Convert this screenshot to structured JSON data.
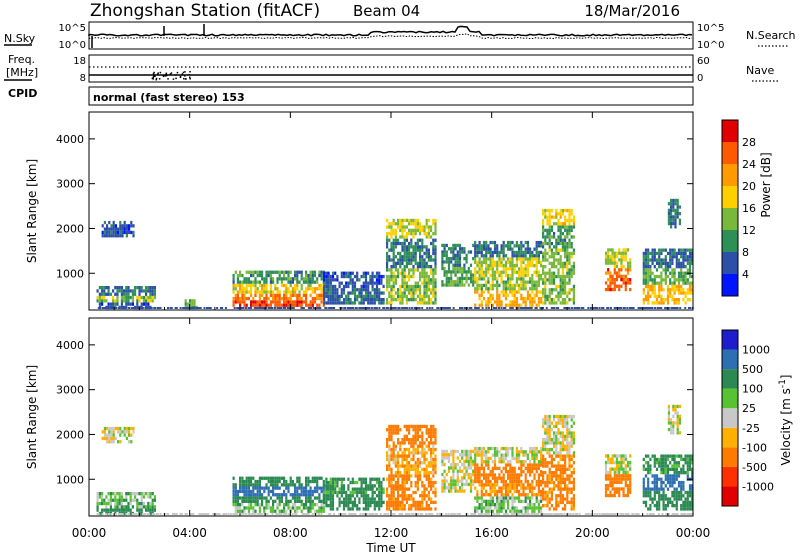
{
  "header": {
    "station": "Zhongshan Station (fitACF)",
    "beam": "Beam 04",
    "date": "18/Mar/2016"
  },
  "top_panels": {
    "nsky_label": "N.Sky",
    "nsearch_label": "N.Search",
    "freq_label_1": "Freq.",
    "freq_label_2": "[MHz]",
    "nave_label": "Nave",
    "cpid_label": "CPID",
    "cpid_value": "normal (fast stereo) 153",
    "noise_ticks_left": [
      "10^5",
      "10^0"
    ],
    "noise_ticks_right": [
      "10^5",
      "10^0"
    ],
    "freq_ticks_left": [
      "18",
      "8"
    ],
    "nave_ticks_right": [
      "60",
      "0"
    ]
  },
  "axes": {
    "ylabel": "Slant Range [km]",
    "yticks": [
      "4000",
      "3000",
      "2000",
      "1000"
    ],
    "xticks": [
      "00:00",
      "04:00",
      "08:00",
      "12:00",
      "16:00",
      "20:00",
      "00:00"
    ],
    "xlabel": "Time UT"
  },
  "colorbars": {
    "power": {
      "label": "Power [dB]",
      "ticks": [
        "28",
        "24",
        "20",
        "16",
        "12",
        "8",
        "4"
      ],
      "colors": [
        "#e00000",
        "#ff5a00",
        "#ff9a00",
        "#ffd000",
        "#79b83a",
        "#2e8f57",
        "#2c4fa8",
        "#0014ff"
      ]
    },
    "velocity": {
      "label": "Velocity [m s",
      "label_superscript": "-1",
      "label_close": "]",
      "ticks": [
        "1000",
        "500",
        "100",
        "25",
        "-25",
        "-100",
        "-500",
        "-1000"
      ],
      "colors": [
        "#1d1dcc",
        "#2d6fb2",
        "#2a8a52",
        "#58c232",
        "#c8c8c8",
        "#ffb000",
        "#ff7a00",
        "#ff3000",
        "#e00000"
      ]
    }
  },
  "chart_data": [
    {
      "type": "heatmap",
      "name": "power",
      "x_range_hours": [
        0,
        24
      ],
      "y_range_km": [
        180,
        4600
      ],
      "regions": [
        {
          "t0": 0.3,
          "t1": 2.6,
          "r0": 200,
          "r1": 650,
          "bands": [
            {
              "r": 250,
              "v": 6
            },
            {
              "r": 400,
              "v": 14
            },
            {
              "r": 550,
              "v": 8
            }
          ]
        },
        {
          "t0": 0.5,
          "t1": 1.8,
          "r0": 1800,
          "r1": 2100,
          "bands": [
            {
              "r": 1950,
              "v": 6
            }
          ]
        },
        {
          "t0": 3.8,
          "t1": 4.3,
          "r0": 200,
          "r1": 400,
          "bands": [
            {
              "r": 300,
              "v": 12
            }
          ]
        },
        {
          "t0": 5.7,
          "t1": 9.3,
          "r0": 250,
          "r1": 1000,
          "bands": [
            {
              "r": 330,
              "v": 27
            },
            {
              "r": 450,
              "v": 24
            },
            {
              "r": 600,
              "v": 18
            },
            {
              "r": 800,
              "v": 10
            }
          ]
        },
        {
          "t0": 9.3,
          "t1": 11.7,
          "r0": 300,
          "r1": 1000,
          "bands": [
            {
              "r": 500,
              "v": 7
            },
            {
              "r": 800,
              "v": 6
            }
          ]
        },
        {
          "t0": 11.8,
          "t1": 13.8,
          "r0": 300,
          "r1": 2200,
          "bands": [
            {
              "r": 800,
              "v": 14
            },
            {
              "r": 1400,
              "v": 8
            },
            {
              "r": 2000,
              "v": 16
            }
          ]
        },
        {
          "t0": 14.0,
          "t1": 15.3,
          "r0": 700,
          "r1": 1600,
          "bands": [
            {
              "r": 900,
              "v": 12
            },
            {
              "r": 1300,
              "v": 8
            }
          ]
        },
        {
          "t0": 15.3,
          "t1": 18.0,
          "r0": 250,
          "r1": 1700,
          "bands": [
            {
              "r": 400,
              "v": 21
            },
            {
              "r": 700,
              "v": 14
            },
            {
              "r": 1100,
              "v": 16
            },
            {
              "r": 1500,
              "v": 8
            }
          ]
        },
        {
          "t0": 18.0,
          "t1": 19.3,
          "r0": 300,
          "r1": 2400,
          "bands": [
            {
              "r": 1200,
              "v": 14
            },
            {
              "r": 1800,
              "v": 10
            },
            {
              "r": 2200,
              "v": 18
            }
          ]
        },
        {
          "t0": 20.5,
          "t1": 21.5,
          "r0": 600,
          "r1": 1500,
          "bands": [
            {
              "r": 900,
              "v": 26
            },
            {
              "r": 1200,
              "v": 16
            }
          ]
        },
        {
          "t0": 22.0,
          "t1": 24.0,
          "r0": 300,
          "r1": 1500,
          "bands": [
            {
              "r": 500,
              "v": 20
            },
            {
              "r": 900,
              "v": 12
            },
            {
              "r": 1300,
              "v": 7
            }
          ]
        },
        {
          "t0": 23.0,
          "t1": 23.5,
          "r0": 2000,
          "r1": 2600,
          "bands": [
            {
              "r": 2300,
              "v": 8
            }
          ]
        }
      ]
    },
    {
      "type": "heatmap",
      "name": "velocity",
      "x_range_hours": [
        0,
        24
      ],
      "y_range_km": [
        180,
        4600
      ],
      "regions": [
        {
          "t0": 0.3,
          "t1": 2.6,
          "r0": 200,
          "r1": 650,
          "bands": [
            {
              "r": 250,
              "v": 200
            },
            {
              "r": 400,
              "v": 80
            },
            {
              "r": 550,
              "v": 60
            }
          ]
        },
        {
          "t0": 0.5,
          "t1": 1.8,
          "r0": 1800,
          "r1": 2100,
          "bands": [
            {
              "r": 1950,
              "v": 0
            }
          ]
        },
        {
          "t0": 5.7,
          "t1": 9.3,
          "r0": 250,
          "r1": 1000,
          "bands": [
            {
              "r": 330,
              "v": 60
            },
            {
              "r": 500,
              "v": 200
            },
            {
              "r": 700,
              "v": 900
            },
            {
              "r": 900,
              "v": 300
            }
          ]
        },
        {
          "t0": 9.3,
          "t1": 11.7,
          "r0": 300,
          "r1": 1000,
          "bands": [
            {
              "r": 500,
              "v": 250
            },
            {
              "r": 800,
              "v": 150
            }
          ]
        },
        {
          "t0": 11.8,
          "t1": 13.8,
          "r0": 300,
          "r1": 2200,
          "bands": [
            {
              "r": 800,
              "v": -150
            },
            {
              "r": 1400,
              "v": -80
            },
            {
              "r": 2000,
              "v": -200
            }
          ]
        },
        {
          "t0": 14.0,
          "t1": 15.3,
          "r0": 700,
          "r1": 1600,
          "bands": [
            {
              "r": 900,
              "v": 0
            },
            {
              "r": 1300,
              "v": 0
            }
          ]
        },
        {
          "t0": 15.3,
          "t1": 18.0,
          "r0": 250,
          "r1": 1700,
          "bands": [
            {
              "r": 400,
              "v": 60
            },
            {
              "r": 700,
              "v": -120
            },
            {
              "r": 1100,
              "v": -200
            },
            {
              "r": 1500,
              "v": 0
            }
          ]
        },
        {
          "t0": 18.0,
          "t1": 19.3,
          "r0": 300,
          "r1": 2400,
          "bands": [
            {
              "r": 1200,
              "v": -150
            },
            {
              "r": 1800,
              "v": 0
            },
            {
              "r": 2200,
              "v": 0
            }
          ]
        },
        {
          "t0": 20.5,
          "t1": 21.5,
          "r0": 600,
          "r1": 1500,
          "bands": [
            {
              "r": 900,
              "v": -300
            },
            {
              "r": 1200,
              "v": 0
            }
          ]
        },
        {
          "t0": 22.0,
          "t1": 24.0,
          "r0": 300,
          "r1": 1500,
          "bands": [
            {
              "r": 500,
              "v": 200
            },
            {
              "r": 900,
              "v": 600
            },
            {
              "r": 1300,
              "v": 150
            }
          ]
        },
        {
          "t0": 23.0,
          "t1": 23.5,
          "r0": 2000,
          "r1": 2600,
          "bands": [
            {
              "r": 2300,
              "v": 0
            }
          ]
        }
      ]
    }
  ]
}
